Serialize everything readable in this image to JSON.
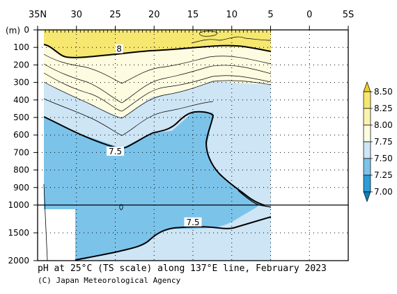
{
  "chart_data": {
    "type": "heatmap",
    "title": "pH at 25°C (TS scale) along 137°E line, February 2023",
    "credit": "(C) Japan Meteorological Agency",
    "ylabel": "(m)",
    "x_ticks": [
      "35N",
      "30",
      "25",
      "20",
      "15",
      "10",
      "5",
      "0",
      "5S"
    ],
    "x_tick_lat": [
      35,
      30,
      25,
      20,
      15,
      10,
      5,
      0,
      -5
    ],
    "xlim": [
      35,
      -5
    ],
    "y_ticks": [
      0,
      100,
      200,
      300,
      400,
      500,
      600,
      700,
      800,
      900,
      1000,
      1500,
      2000
    ],
    "y_range_upper": [
      0,
      1000
    ],
    "y_range_lower": [
      1000,
      2000
    ],
    "data_extent_lat": [
      34,
      5
    ],
    "colorbar": {
      "levels": [
        "8.50",
        "8.25",
        "8.00",
        "7.75",
        "7.50",
        "7.25",
        "7.00"
      ],
      "colors": [
        "#f0d020",
        "#f5e770",
        "#faf3b0",
        "#fdfbe0",
        "#cde5f5",
        "#7cc3ea",
        "#2d9ed6",
        "#0f7fc2"
      ]
    },
    "contour_labels": [
      {
        "text": "8",
        "lat": 24.5,
        "depth": 110
      },
      {
        "text": "7.5",
        "lat": 25,
        "depth": 695
      },
      {
        "text": "7.5",
        "lat": 15,
        "depth": 1310
      }
    ],
    "isolines_key": {
      "8.0": "thick",
      "7.5": "thick",
      "minor": "thin"
    }
  }
}
